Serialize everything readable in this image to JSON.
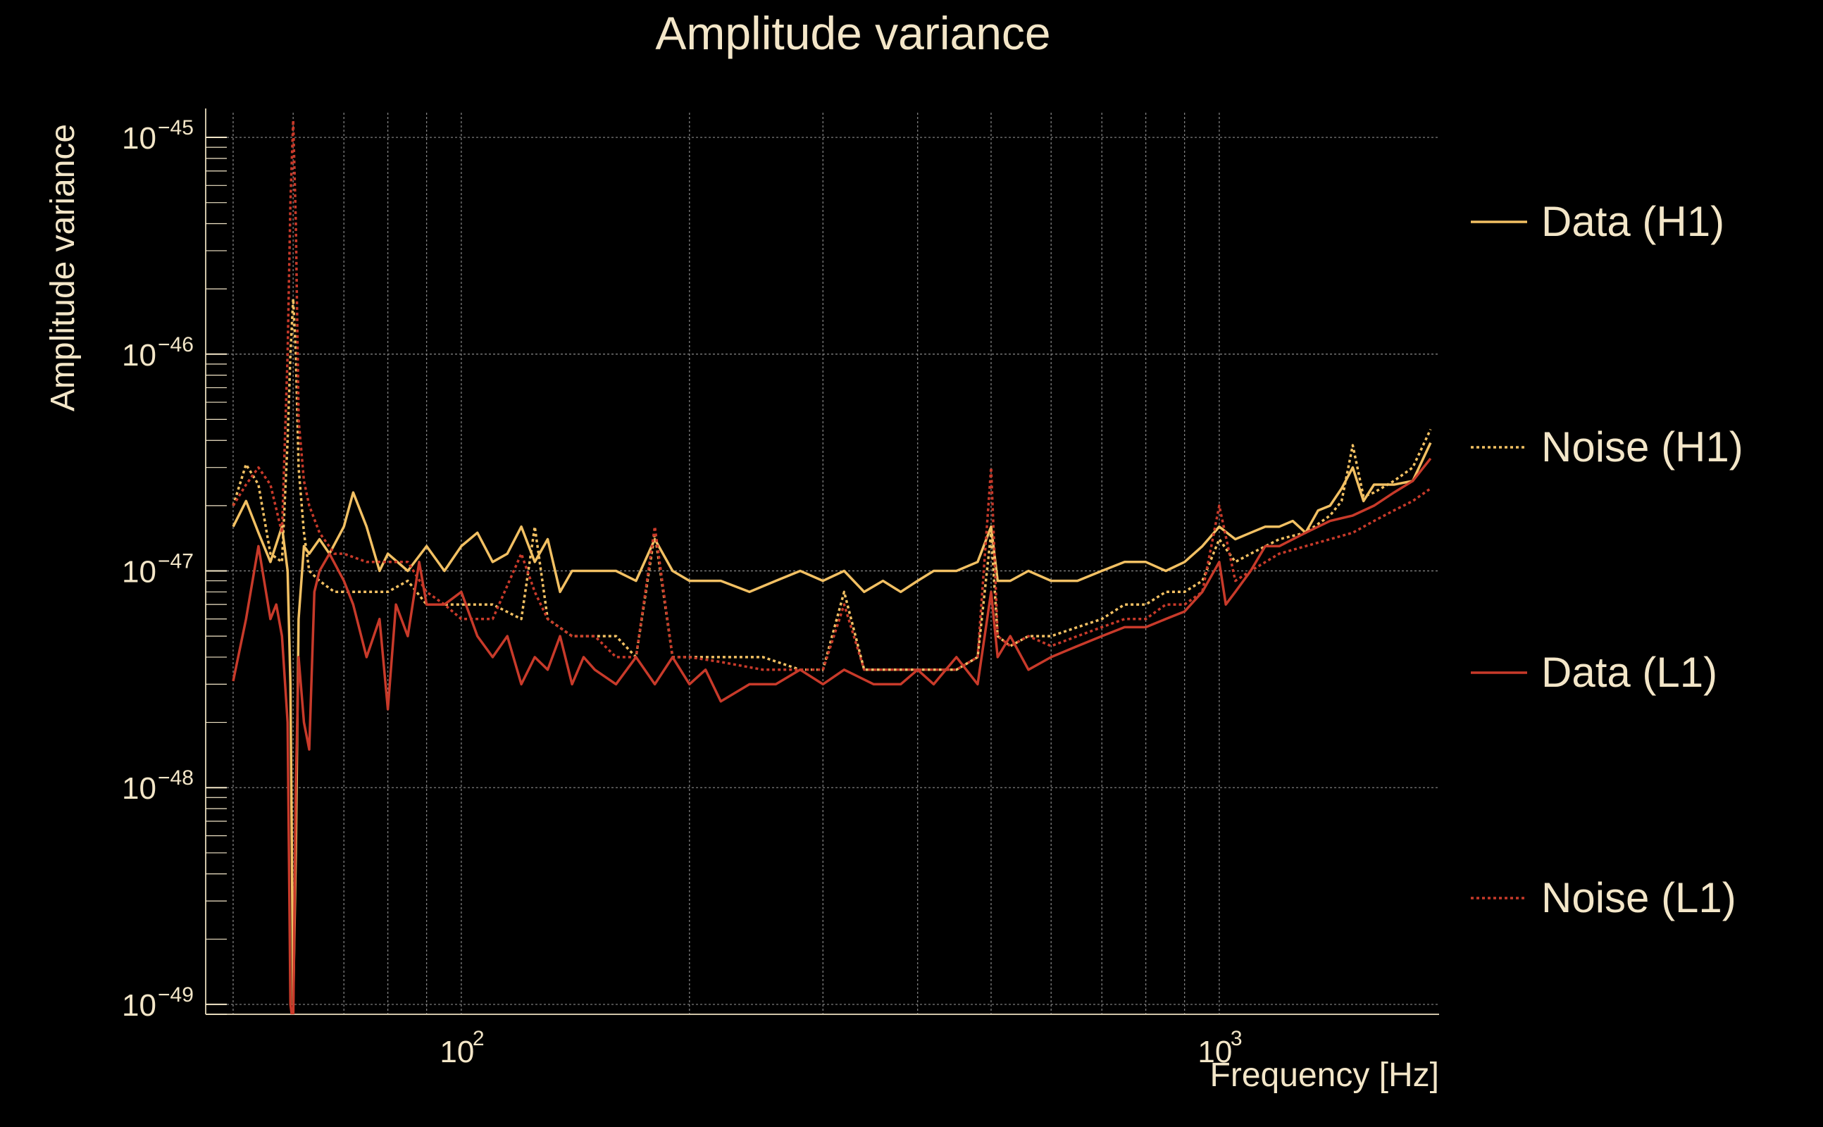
{
  "chart_data": {
    "type": "line",
    "title": "Amplitude variance",
    "xlabel": "Frequency [Hz]",
    "ylabel": "Amplitude variance",
    "x_scale": "log",
    "y_scale": "log",
    "xlim": [
      46,
      1950
    ],
    "ylim": [
      9e-50,
      1.3e-45
    ],
    "grid": true,
    "legend_position": "right",
    "x_ticks": [
      {
        "base": "10",
        "exp": "2",
        "value": 100
      },
      {
        "base": "10",
        "exp": "3",
        "value": 1000
      }
    ],
    "y_ticks": [
      {
        "base": "10",
        "exp": "−45",
        "value": 1e-45
      },
      {
        "base": "10",
        "exp": "−46",
        "value": 1e-46
      },
      {
        "base": "10",
        "exp": "−47",
        "value": 1e-47
      },
      {
        "base": "10",
        "exp": "−48",
        "value": 1e-48
      },
      {
        "base": "10",
        "exp": "−49",
        "value": 1e-49
      }
    ],
    "series": [
      {
        "name": "Data (H1)",
        "color": "#f2c063",
        "style": "solid",
        "x": [
          50,
          52,
          54,
          56,
          58,
          59,
          59.5,
          60,
          60.5,
          61,
          62,
          63,
          65,
          67,
          70,
          72,
          75,
          78,
          80,
          85,
          90,
          95,
          100,
          105,
          110,
          115,
          120,
          125,
          130,
          135,
          140,
          150,
          160,
          170,
          180,
          190,
          200,
          220,
          240,
          260,
          280,
          300,
          320,
          340,
          360,
          380,
          400,
          420,
          450,
          480,
          500,
          510,
          530,
          560,
          600,
          650,
          700,
          750,
          800,
          850,
          900,
          950,
          1000,
          1050,
          1100,
          1150,
          1200,
          1250,
          1300,
          1350,
          1400,
          1450,
          1500,
          1550,
          1600,
          1700,
          1800,
          1900
        ],
        "y": [
          1.6e-47,
          2.1e-47,
          1.5e-47,
          1.1e-47,
          1.6e-47,
          1e-47,
          3e-48,
          1e-49,
          5e-49,
          6e-48,
          1.3e-47,
          1.2e-47,
          1.4e-47,
          1.2e-47,
          1.6e-47,
          2.3e-47,
          1.6e-47,
          1e-47,
          1.2e-47,
          1e-47,
          1.3e-47,
          1e-47,
          1.3e-47,
          1.5e-47,
          1.1e-47,
          1.2e-47,
          1.6e-47,
          1.1e-47,
          1.4e-47,
          8e-48,
          1e-47,
          1e-47,
          1e-47,
          9e-48,
          1.4e-47,
          1e-47,
          9e-48,
          9e-48,
          8e-48,
          9e-48,
          1e-47,
          9e-48,
          1e-47,
          8e-48,
          9e-48,
          8e-48,
          9e-48,
          1e-47,
          1e-47,
          1.1e-47,
          1.6e-47,
          9e-48,
          9e-48,
          1e-47,
          9e-48,
          9e-48,
          1e-47,
          1.1e-47,
          1.1e-47,
          1e-47,
          1.1e-47,
          1.3e-47,
          1.6e-47,
          1.4e-47,
          1.5e-47,
          1.6e-47,
          1.6e-47,
          1.7e-47,
          1.5e-47,
          1.9e-47,
          2e-47,
          2.4e-47,
          3e-47,
          2.1e-47,
          2.5e-47,
          2.5e-47,
          2.6e-47,
          3.9e-47
        ]
      },
      {
        "name": "Noise (H1)",
        "color": "#f2c063",
        "style": "dotted",
        "x": [
          50,
          52,
          54,
          56,
          58,
          59,
          59.5,
          60,
          60.5,
          61,
          62,
          63,
          65,
          68,
          70,
          75,
          80,
          85,
          90,
          95,
          100,
          110,
          120,
          125,
          130,
          140,
          150,
          160,
          170,
          180,
          190,
          200,
          220,
          250,
          280,
          300,
          320,
          340,
          380,
          420,
          450,
          480,
          500,
          510,
          530,
          560,
          600,
          650,
          700,
          750,
          800,
          850,
          900,
          950,
          1000,
          1050,
          1100,
          1200,
          1300,
          1400,
          1450,
          1500,
          1550,
          1600,
          1700,
          1800,
          1900
        ],
        "y": [
          2e-47,
          3.1e-47,
          2.5e-47,
          1.2e-47,
          1.1e-47,
          4e-47,
          1e-46,
          1.8e-46,
          1e-46,
          3e-47,
          1.5e-47,
          1e-47,
          9e-48,
          8e-48,
          8e-48,
          8e-48,
          8e-48,
          9e-48,
          7e-48,
          7e-48,
          7e-48,
          7e-48,
          6e-48,
          1.6e-47,
          6e-48,
          5e-48,
          5e-48,
          5e-48,
          4e-48,
          1.5e-47,
          4e-48,
          4e-48,
          4e-48,
          4e-48,
          3.5e-48,
          3.5e-48,
          8e-48,
          3.5e-48,
          3.5e-48,
          3.5e-48,
          3.5e-48,
          4e-48,
          1.5e-47,
          5e-48,
          4.5e-48,
          5e-48,
          5e-48,
          5.5e-48,
          6e-48,
          7e-48,
          7e-48,
          8e-48,
          8e-48,
          9e-48,
          1.4e-47,
          1.1e-47,
          1.2e-47,
          1.4e-47,
          1.5e-47,
          1.8e-47,
          2.1e-47,
          3.8e-47,
          2.2e-47,
          2.3e-47,
          2.6e-47,
          3e-47,
          4.5e-47
        ]
      },
      {
        "name": "Data (L1)",
        "color": "#c83a2a",
        "style": "solid",
        "x": [
          50,
          52,
          54,
          56,
          57,
          58,
          59,
          59.5,
          60,
          60.5,
          61,
          62,
          63,
          64,
          65,
          67,
          70,
          72,
          75,
          78,
          80,
          82,
          85,
          88,
          90,
          95,
          100,
          105,
          110,
          115,
          120,
          125,
          130,
          135,
          140,
          145,
          150,
          160,
          170,
          180,
          190,
          200,
          210,
          220,
          240,
          260,
          280,
          300,
          320,
          350,
          380,
          400,
          420,
          450,
          480,
          500,
          510,
          530,
          560,
          600,
          650,
          700,
          750,
          800,
          850,
          900,
          950,
          1000,
          1020,
          1050,
          1100,
          1150,
          1200,
          1300,
          1400,
          1500,
          1600,
          1700,
          1800,
          1900
        ],
        "y": [
          3.1e-48,
          6e-48,
          1.3e-47,
          6e-48,
          7e-48,
          5e-48,
          2e-48,
          1e-49,
          8e-50,
          1e-48,
          4e-48,
          2e-48,
          1.5e-48,
          8e-48,
          1e-47,
          1.2e-47,
          9e-48,
          7e-48,
          4e-48,
          6e-48,
          2.3e-48,
          7e-48,
          5e-48,
          1.1e-47,
          7e-48,
          7e-48,
          8e-48,
          5e-48,
          4e-48,
          5e-48,
          3e-48,
          4e-48,
          3.5e-48,
          5e-48,
          3e-48,
          4e-48,
          3.5e-48,
          3e-48,
          4e-48,
          3e-48,
          4e-48,
          3e-48,
          3.5e-48,
          2.5e-48,
          3e-48,
          3e-48,
          3.5e-48,
          3e-48,
          3.5e-48,
          3e-48,
          3e-48,
          3.5e-48,
          3e-48,
          4e-48,
          3e-48,
          8e-48,
          4e-48,
          5e-48,
          3.5e-48,
          4e-48,
          4.5e-48,
          5e-48,
          5.5e-48,
          5.5e-48,
          6e-48,
          6.5e-48,
          8e-48,
          1.1e-47,
          7e-48,
          8e-48,
          1e-47,
          1.3e-47,
          1.3e-47,
          1.5e-47,
          1.7e-47,
          1.8e-47,
          2e-47,
          2.3e-47,
          2.6e-47,
          3.3e-47
        ]
      },
      {
        "name": "Noise (L1)",
        "color": "#c83a2a",
        "style": "dotted",
        "x": [
          50,
          52,
          54,
          56,
          58,
          59,
          59.5,
          60,
          60.5,
          61,
          62,
          63,
          65,
          68,
          70,
          75,
          80,
          85,
          90,
          95,
          100,
          110,
          120,
          125,
          130,
          140,
          150,
          160,
          170,
          180,
          190,
          200,
          220,
          250,
          280,
          300,
          320,
          340,
          380,
          420,
          450,
          480,
          500,
          510,
          530,
          560,
          600,
          650,
          700,
          750,
          800,
          850,
          900,
          950,
          1000,
          1050,
          1100,
          1200,
          1300,
          1400,
          1500,
          1600,
          1700,
          1800,
          1900
        ],
        "y": [
          2e-47,
          2.5e-47,
          3e-47,
          2.5e-47,
          1.5e-47,
          1e-46,
          5e-46,
          1.2e-45,
          4e-46,
          5e-47,
          2.6e-47,
          2e-47,
          1.5e-47,
          1.2e-47,
          1.2e-47,
          1.1e-47,
          1.1e-47,
          1.1e-47,
          8e-48,
          7e-48,
          6e-48,
          6e-48,
          1.2e-47,
          8e-48,
          6e-48,
          5e-48,
          5e-48,
          4e-48,
          4e-48,
          1.6e-47,
          4e-48,
          4e-48,
          3.8e-48,
          3.5e-48,
          3.5e-48,
          3.5e-48,
          7e-48,
          3.5e-48,
          3.5e-48,
          3.5e-48,
          3.5e-48,
          4e-48,
          3e-47,
          5e-48,
          4.5e-48,
          5e-48,
          4.5e-48,
          5e-48,
          5.5e-48,
          6e-48,
          6e-48,
          7e-48,
          7e-48,
          8e-48,
          2e-47,
          9e-48,
          1e-47,
          1.2e-47,
          1.3e-47,
          1.4e-47,
          1.5e-47,
          1.7e-47,
          1.9e-47,
          2.1e-47,
          2.4e-47
        ]
      }
    ]
  }
}
